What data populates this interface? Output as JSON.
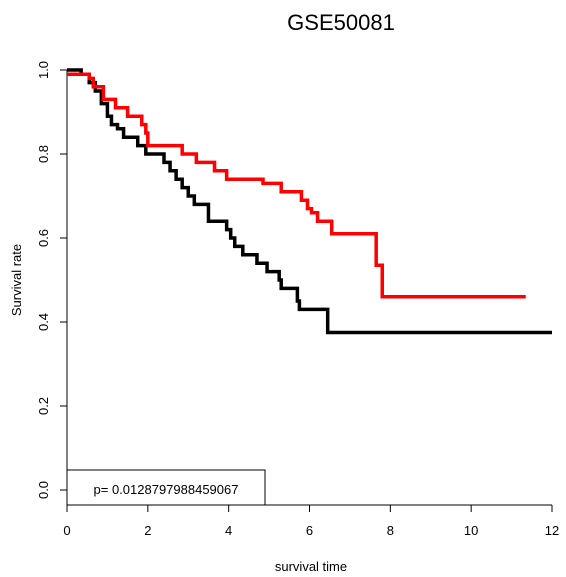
{
  "chart_data": {
    "type": "line",
    "step": true,
    "title": "GSE50081",
    "xlabel": "survival time",
    "ylabel": "Survival rate",
    "xlim": [
      0,
      12
    ],
    "ylim": [
      0,
      1
    ],
    "x_ticks": [
      0,
      2,
      4,
      6,
      8,
      10,
      12
    ],
    "y_ticks": [
      0.0,
      0.2,
      0.4,
      0.6,
      0.8,
      1.0
    ],
    "x_tick_labels": [
      "0",
      "2",
      "4",
      "6",
      "8",
      "10",
      "12"
    ],
    "y_tick_labels": [
      "0.0",
      "0.2",
      "0.4",
      "0.6",
      "0.8",
      "1.0"
    ],
    "annotation": "p= 0.0128797988459067",
    "grid": false,
    "series": [
      {
        "color": "#000000",
        "points": [
          [
            0,
            1.0
          ],
          [
            0.35,
            0.99
          ],
          [
            0.55,
            0.97
          ],
          [
            0.7,
            0.95
          ],
          [
            0.85,
            0.92
          ],
          [
            1.0,
            0.89
          ],
          [
            1.1,
            0.87
          ],
          [
            1.25,
            0.86
          ],
          [
            1.4,
            0.84
          ],
          [
            1.75,
            0.82
          ],
          [
            1.95,
            0.8
          ],
          [
            2.4,
            0.78
          ],
          [
            2.55,
            0.76
          ],
          [
            2.7,
            0.74
          ],
          [
            2.85,
            0.72
          ],
          [
            3.0,
            0.7
          ],
          [
            3.15,
            0.68
          ],
          [
            3.5,
            0.64
          ],
          [
            3.95,
            0.62
          ],
          [
            4.05,
            0.6
          ],
          [
            4.15,
            0.58
          ],
          [
            4.35,
            0.56
          ],
          [
            4.7,
            0.54
          ],
          [
            4.95,
            0.52
          ],
          [
            5.25,
            0.5
          ],
          [
            5.3,
            0.48
          ],
          [
            5.7,
            0.45
          ],
          [
            5.75,
            0.43
          ],
          [
            6.45,
            0.375
          ],
          [
            12.0,
            0.375
          ]
        ]
      },
      {
        "color": "#ff0000",
        "points": [
          [
            0,
            0.99
          ],
          [
            0.55,
            0.98
          ],
          [
            0.65,
            0.96
          ],
          [
            0.9,
            0.93
          ],
          [
            1.2,
            0.91
          ],
          [
            1.5,
            0.89
          ],
          [
            1.85,
            0.87
          ],
          [
            1.95,
            0.85
          ],
          [
            2.0,
            0.82
          ],
          [
            2.85,
            0.8
          ],
          [
            3.2,
            0.78
          ],
          [
            3.65,
            0.76
          ],
          [
            3.95,
            0.74
          ],
          [
            4.85,
            0.73
          ],
          [
            5.3,
            0.71
          ],
          [
            5.8,
            0.69
          ],
          [
            5.95,
            0.67
          ],
          [
            6.05,
            0.66
          ],
          [
            6.2,
            0.64
          ],
          [
            6.55,
            0.61
          ],
          [
            7.65,
            0.535
          ],
          [
            7.8,
            0.46
          ],
          [
            11.35,
            0.46
          ]
        ]
      }
    ]
  }
}
